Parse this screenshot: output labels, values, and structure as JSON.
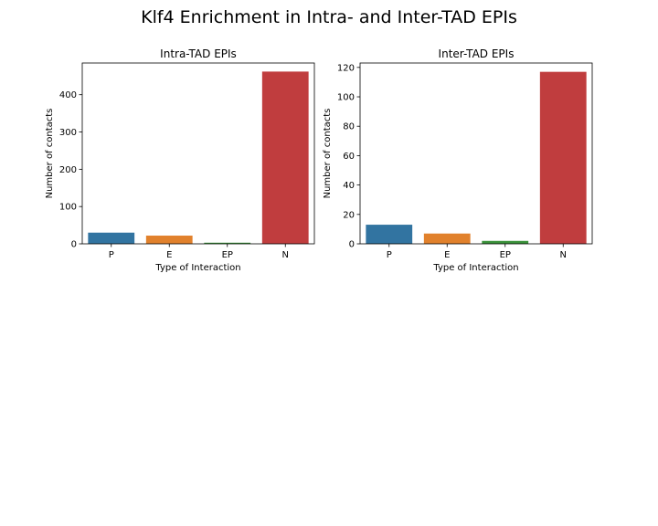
{
  "figure": {
    "title": "Klf4 Enrichment in Intra- and Inter-TAD EPIs"
  },
  "chart_data": [
    {
      "type": "bar",
      "title": "Intra-TAD EPIs",
      "xlabel": "Type of Interaction",
      "ylabel": "Number of contacts",
      "categories": [
        "P",
        "E",
        "EP",
        "N"
      ],
      "values": [
        30,
        22,
        3,
        462
      ],
      "colors": [
        "#3274a1",
        "#e1812c",
        "#3a923a",
        "#c03d3e"
      ],
      "ylim": [
        0,
        485
      ],
      "yticks": [
        0,
        100,
        200,
        300,
        400
      ],
      "grid": false
    },
    {
      "type": "bar",
      "title": "Inter-TAD EPIs",
      "xlabel": "Type of Interaction",
      "ylabel": "Number of contacts",
      "categories": [
        "P",
        "E",
        "EP",
        "N"
      ],
      "values": [
        13,
        7,
        2,
        117
      ],
      "colors": [
        "#3274a1",
        "#e1812c",
        "#3a923a",
        "#c03d3e"
      ],
      "ylim": [
        0,
        123
      ],
      "yticks": [
        0,
        20,
        40,
        60,
        80,
        100,
        120
      ],
      "grid": false
    }
  ]
}
